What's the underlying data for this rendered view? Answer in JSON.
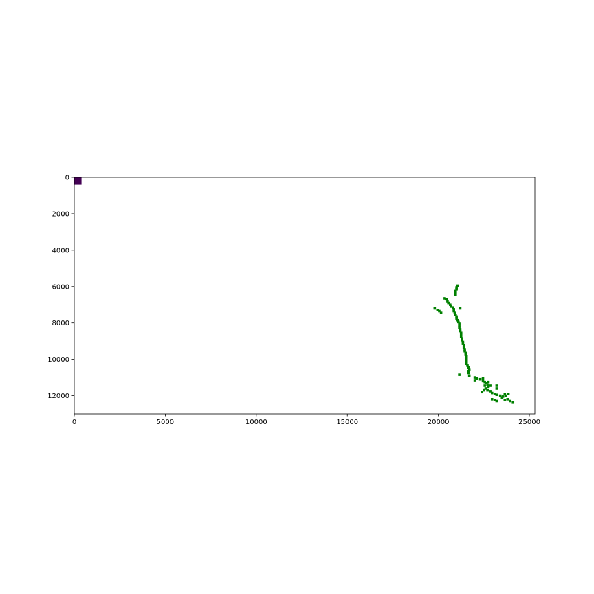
{
  "chart_data": {
    "type": "scatter",
    "title": "",
    "xlabel": "",
    "ylabel": "",
    "xlim": [
      0,
      25300
    ],
    "ylim": [
      13000,
      0
    ],
    "y_axis_inverted": true,
    "grid": false,
    "legend": "none",
    "x_ticks": [
      "0",
      "5000",
      "10000",
      "15000",
      "20000",
      "25000"
    ],
    "x_tick_values": [
      0,
      5000,
      10000,
      15000,
      20000,
      25000
    ],
    "y_ticks": [
      "0",
      "2000",
      "4000",
      "6000",
      "8000",
      "10000",
      "12000"
    ],
    "y_tick_values": [
      0,
      2000,
      4000,
      6000,
      8000,
      10000,
      12000
    ],
    "marker": {
      "x": 200,
      "y": 200,
      "width": 400,
      "height": 400,
      "color": "#440154"
    },
    "series": [
      {
        "color": "#008000",
        "points": [
          [
            21050,
            5950
          ],
          [
            21000,
            6050
          ],
          [
            21000,
            6150
          ],
          [
            20950,
            6250
          ],
          [
            20950,
            6350
          ],
          [
            20950,
            6450
          ],
          [
            20350,
            6650
          ],
          [
            20450,
            6700
          ],
          [
            20500,
            6800
          ],
          [
            20550,
            6900
          ],
          [
            20650,
            7000
          ],
          [
            20700,
            7100
          ],
          [
            20800,
            7150
          ],
          [
            20850,
            7250
          ],
          [
            20850,
            7350
          ],
          [
            20900,
            7450
          ],
          [
            20950,
            7550
          ],
          [
            21000,
            7650
          ],
          [
            21000,
            7750
          ],
          [
            21050,
            7850
          ],
          [
            21100,
            7950
          ],
          [
            21150,
            8050
          ],
          [
            21150,
            8150
          ],
          [
            21150,
            8250
          ],
          [
            21200,
            8350
          ],
          [
            21200,
            8450
          ],
          [
            21250,
            8550
          ],
          [
            21250,
            8650
          ],
          [
            21250,
            8750
          ],
          [
            21300,
            8850
          ],
          [
            21300,
            8950
          ],
          [
            21350,
            9050
          ],
          [
            21350,
            9150
          ],
          [
            21400,
            9250
          ],
          [
            21400,
            9350
          ],
          [
            21450,
            9450
          ],
          [
            21450,
            9550
          ],
          [
            21500,
            9650
          ],
          [
            21500,
            9750
          ],
          [
            21550,
            9850
          ],
          [
            21550,
            9950
          ],
          [
            21550,
            10050
          ],
          [
            21550,
            10150
          ],
          [
            21550,
            10250
          ],
          [
            21600,
            10350
          ],
          [
            21650,
            10450
          ],
          [
            21700,
            10550
          ],
          [
            21650,
            10650
          ],
          [
            21650,
            10750
          ],
          [
            21700,
            10900
          ],
          [
            21200,
            7200
          ],
          [
            19800,
            7200
          ],
          [
            19950,
            7300
          ],
          [
            20050,
            7350
          ],
          [
            20150,
            7450
          ],
          [
            21150,
            10850
          ],
          [
            22000,
            11000
          ],
          [
            22100,
            11050
          ],
          [
            22000,
            11150
          ],
          [
            22300,
            11100
          ],
          [
            22450,
            11050
          ],
          [
            22450,
            11200
          ],
          [
            22550,
            11250
          ],
          [
            22650,
            11300
          ],
          [
            22750,
            11250
          ],
          [
            22700,
            11400
          ],
          [
            22550,
            11450
          ],
          [
            22750,
            11500
          ],
          [
            22850,
            11450
          ],
          [
            22600,
            11600
          ],
          [
            22500,
            11700
          ],
          [
            22400,
            11800
          ],
          [
            22700,
            11700
          ],
          [
            22850,
            11750
          ],
          [
            22950,
            11850
          ],
          [
            23100,
            11900
          ],
          [
            23200,
            11950
          ],
          [
            23200,
            11600
          ],
          [
            23200,
            11450
          ],
          [
            23400,
            12000
          ],
          [
            23550,
            12050
          ],
          [
            23500,
            12100
          ],
          [
            23700,
            12000
          ],
          [
            23650,
            11900
          ],
          [
            23850,
            11900
          ],
          [
            23800,
            12200
          ],
          [
            23950,
            12300
          ],
          [
            24100,
            12350
          ],
          [
            23650,
            12250
          ],
          [
            23100,
            12250
          ],
          [
            22950,
            12200
          ],
          [
            23200,
            12300
          ]
        ]
      }
    ]
  }
}
